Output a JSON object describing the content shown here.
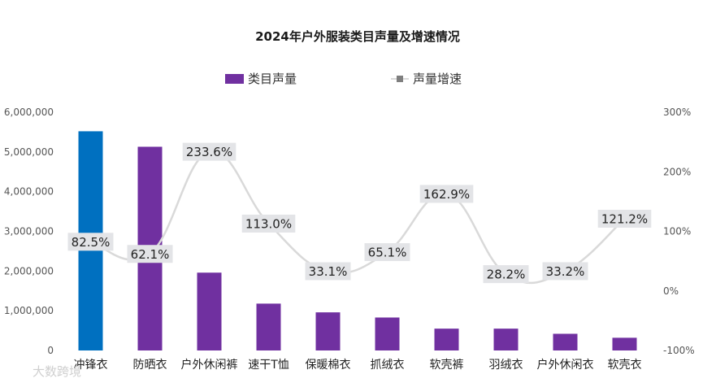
{
  "chart_data": {
    "type": "bar+line",
    "title": "2024年户外服装类目声量及增速情况",
    "legend": [
      "类目声量",
      "声量增速"
    ],
    "legend_position": "top-center",
    "categories": [
      "冲锋衣",
      "防晒衣",
      "户外休闲裤",
      "速干T恤",
      "保暖棉衣",
      "抓绒衣",
      "软壳裤",
      "羽绒衣",
      "户外休闲衣",
      "软壳衣"
    ],
    "series": [
      {
        "name": "类目声量",
        "kind": "bar",
        "axis": "left",
        "values": [
          5520000,
          5130000,
          1960000,
          1180000,
          960000,
          830000,
          550000,
          550000,
          420000,
          320000
        ]
      },
      {
        "name": "声量增速",
        "kind": "line",
        "axis": "right",
        "values": [
          82.5,
          62.1,
          233.6,
          113.0,
          33.1,
          65.1,
          162.9,
          28.2,
          33.2,
          121.2
        ],
        "labels": [
          "82.5%",
          "62.1%",
          "233.6%",
          "113.0%",
          "33.1%",
          "65.1%",
          "162.9%",
          "28.2%",
          "33.2%",
          "121.2%"
        ]
      }
    ],
    "y_left": {
      "ylim": [
        0,
        6000000
      ],
      "ticks": [
        0,
        1000000,
        2000000,
        3000000,
        4000000,
        5000000,
        6000000
      ],
      "tick_labels": [
        "0",
        "1,000,000",
        "2,000,000",
        "3,000,000",
        "4,000,000",
        "5,000,000",
        "6,000,000"
      ]
    },
    "y_right": {
      "ylim": [
        -100,
        300
      ],
      "ticks": [
        -100,
        0,
        100,
        200,
        300
      ],
      "tick_labels": [
        "-100%",
        "0%",
        "100%",
        "200%",
        "300%"
      ]
    },
    "highlight_index": 0,
    "colors": {
      "bar": "#7030a0",
      "bar_highlight": "#0070c0",
      "line": "#d9d9d9",
      "legend_marker": "#7f7f7f"
    },
    "grid": false
  },
  "watermark": "大数跨境"
}
